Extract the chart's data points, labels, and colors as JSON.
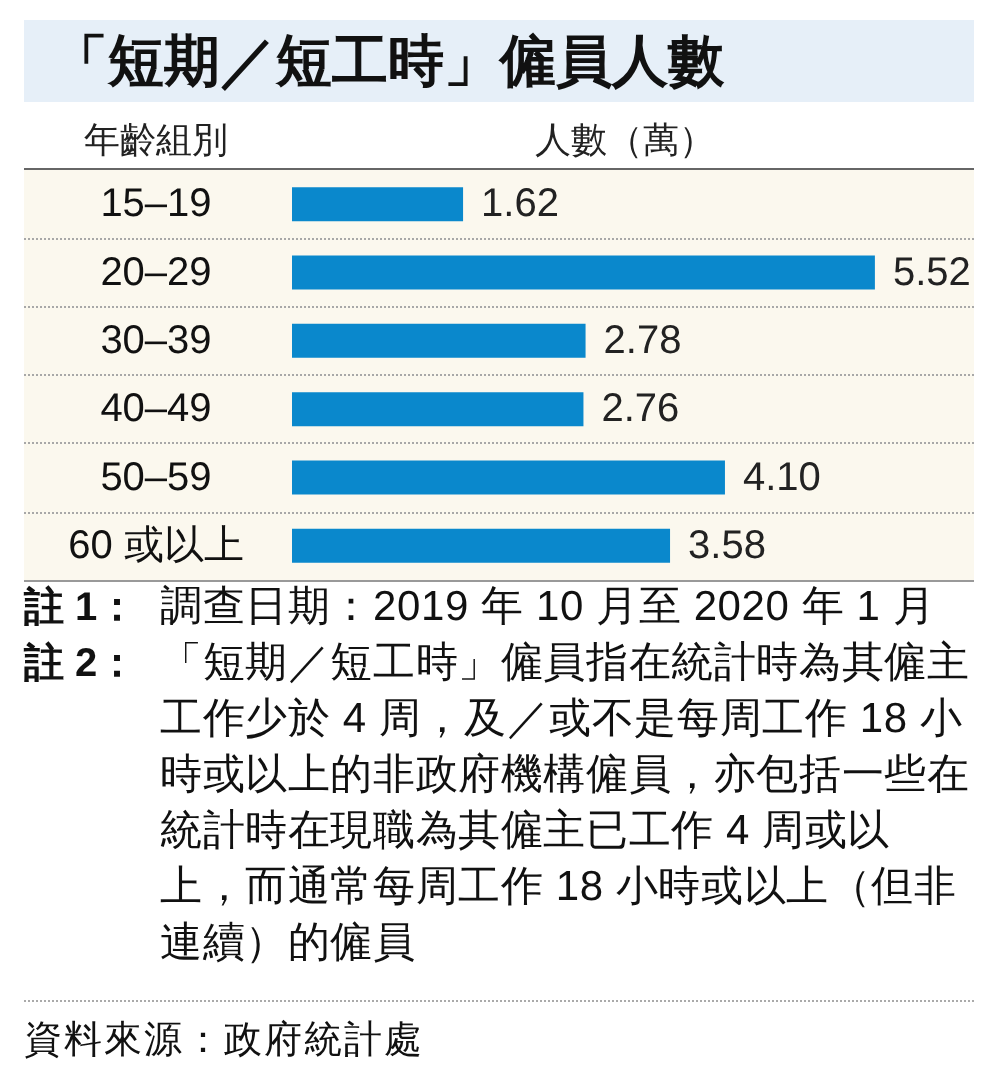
{
  "chart_data": {
    "type": "bar",
    "orientation": "horizontal",
    "title": "「短期／短工時」僱員人數",
    "ylabel": "年齡組別",
    "xlabel": "人數（萬）",
    "categories": [
      "15–19",
      "20–29",
      "30–39",
      "40–49",
      "50–59",
      "60 或以上"
    ],
    "values": [
      1.62,
      5.52,
      2.78,
      2.76,
      4.1,
      3.58
    ],
    "value_labels": [
      "1.62",
      "5.52",
      "2.78",
      "2.76",
      "4.10",
      "3.58"
    ],
    "color": "#0a88cc",
    "tick_labels": "y",
    "grid": "y",
    "annotations": [
      "註 1：調查日期：2019 年 10 月至 2020 年 1 月",
      "註 2：「短期／短工時」僱員指在統計時為其僱主工作少於 4 周，及／或不是每周工作 18 小時或以上的非政府機構僱員，亦包括一些在統計時在現職為其僱主已工作 4 周或以上，而通常每周工作 18 小時或以上（但非連續）的僱員",
      "資料來源：政府統計處"
    ]
  }
}
